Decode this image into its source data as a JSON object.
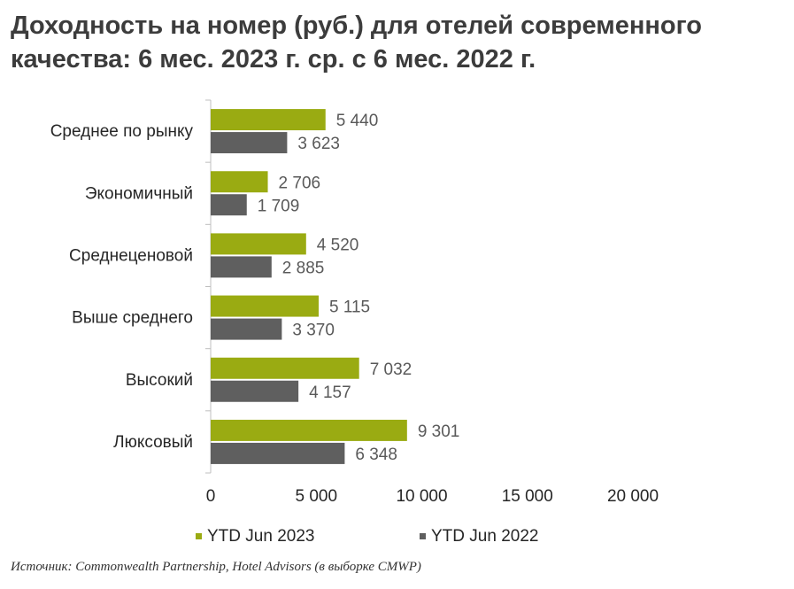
{
  "title_line1": "Доходность на номер (руб.) для отелей современного",
  "title_line2": "качества: 6 мес. 2023 г. ср. с 6 мес. 2022 г.",
  "source": "Источник: Commonwealth Partnership, Hotel Advisors (в выборке CMWP)",
  "colors": {
    "series_2023": "#9aab12",
    "series_2022": "#5f5f5f",
    "text": "#595959",
    "axis": "#bfbfbf"
  },
  "chart_data": {
    "type": "bar",
    "orientation": "horizontal",
    "categories": [
      "Среднее по рынку",
      "Экономичный",
      "Среднеценовой",
      "Выше среднего",
      "Высокий",
      "Люксовый"
    ],
    "series": [
      {
        "name": "YTD Jun 2023",
        "values": [
          5440,
          2706,
          4520,
          5115,
          7032,
          9301
        ],
        "labels": [
          "5 440",
          "2 706",
          "4 520",
          "5 115",
          "7 032",
          "9 301"
        ]
      },
      {
        "name": "YTD Jun 2022",
        "values": [
          3623,
          1709,
          2885,
          3370,
          4157,
          6348
        ],
        "labels": [
          "3 623",
          "1 709",
          "2 885",
          "3 370",
          "4 157",
          "6 348"
        ]
      }
    ],
    "xlim": [
      0,
      20000
    ],
    "xticks": [
      0,
      5000,
      10000,
      15000,
      20000
    ],
    "xtick_labels": [
      "0",
      "5 000",
      "10 000",
      "15 000",
      "20 000"
    ],
    "grid": false,
    "legend_position": "bottom"
  }
}
